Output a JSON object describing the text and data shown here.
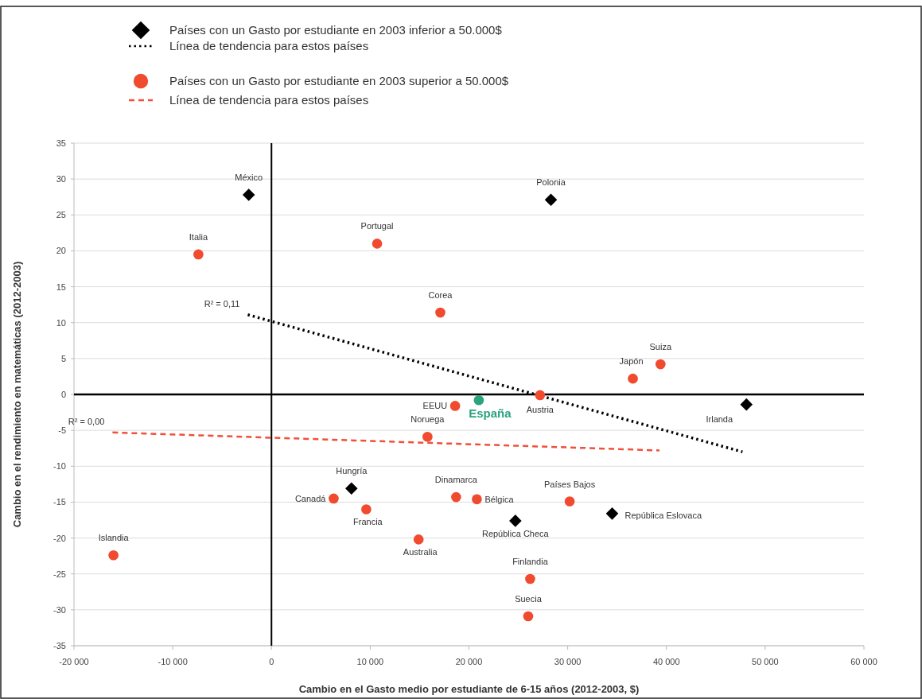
{
  "chart_data": {
    "type": "scatter",
    "xlabel": "Cambio en el Gasto medio por estudiante de 6-15 años (2012-2003, $)",
    "ylabel": "Cambio en el rendimiento en matemáticas (2012-2003)",
    "xlim": [
      -20000,
      60000
    ],
    "ylim": [
      -35,
      35
    ],
    "xticks": [
      {
        "value": -20000,
        "label": "-20 000"
      },
      {
        "value": -10000,
        "label": "-10 000"
      },
      0,
      {
        "value": 10000,
        "label": "10 000"
      },
      {
        "value": 20000,
        "label": "20 000"
      },
      {
        "value": 30000,
        "label": "30 000"
      },
      {
        "value": 40000,
        "label": "40 000"
      },
      {
        "value": 50000,
        "label": "50 000"
      },
      {
        "value": 60000,
        "label": "60 000"
      }
    ],
    "yticks": [
      -35,
      -30,
      -25,
      -20,
      -15,
      -10,
      -5,
      0,
      5,
      10,
      15,
      20,
      25,
      30,
      35
    ],
    "grid": "y",
    "legend": "top",
    "annotations": [
      {
        "text": "R² = 0,11",
        "x": -2400,
        "y": 11.1
      },
      {
        "text": "R² = 0,00",
        "x": -16100,
        "y": -5.3
      }
    ],
    "series": [
      {
        "name": "Países con un Gasto por estudiante en 2003 inferior a 50.000$",
        "type": "scatter",
        "marker": "diamond",
        "color": "#000000",
        "x": [
          -2300,
          28300,
          8100,
          24700,
          34500,
          48100
        ],
        "values": [
          27.8,
          27.1,
          -13.1,
          -17.6,
          -16.6,
          -1.4
        ],
        "value_labels": [
          "México",
          "Polonia",
          "Hungría",
          "República Checa",
          "República Eslovaca",
          "Irlanda"
        ]
      },
      {
        "name": "Línea de tendencia para estos países",
        "type": "line",
        "marker": "none",
        "line_style": "dotted",
        "color": "#000000",
        "x": [
          -2400,
          47700
        ],
        "values": [
          11.1,
          -8.0
        ]
      },
      {
        "name": "Países con un Gasto por estudiante en 2003 superior a 50.000$",
        "type": "scatter",
        "marker": "circle",
        "color": "#f04a2f",
        "x": [
          -7400,
          10700,
          17100,
          18600,
          21000,
          27200,
          36600,
          39400,
          15800,
          6300,
          9600,
          14900,
          -16000,
          18700,
          20800,
          30200,
          26200,
          26000
        ],
        "values": [
          19.5,
          21.0,
          11.4,
          -1.6,
          -0.8,
          -0.1,
          2.2,
          4.2,
          -5.9,
          -14.5,
          -16.0,
          -20.2,
          -22.4,
          -14.3,
          -14.6,
          -14.9,
          -25.7,
          -30.9
        ],
        "colors": [
          "#f04a2f",
          "#f04a2f",
          "#f04a2f",
          "#f04a2f",
          "#2aa380",
          "#f04a2f",
          "#f04a2f",
          "#f04a2f",
          "#f04a2f",
          "#f04a2f",
          "#f04a2f",
          "#f04a2f",
          "#f04a2f",
          "#f04a2f",
          "#f04a2f",
          "#f04a2f",
          "#f04a2f",
          "#f04a2f"
        ],
        "value_labels": [
          "Italia",
          "Portugal",
          "Corea",
          "EEUU",
          "España",
          "Austria",
          "Japón",
          "Suiza",
          "Noruega",
          "Canadá",
          "Francia",
          "Australia",
          "Islandia",
          "Dinamarca",
          "Bélgica",
          "Países Bajos",
          "Finlandia",
          "Suecia"
        ]
      },
      {
        "name": "Línea de tendencia para estos países",
        "type": "line",
        "marker": "none",
        "line_style": "dashed",
        "color": "#f0503a",
        "x": [
          -16100,
          39300
        ],
        "values": [
          -5.3,
          -7.8
        ]
      }
    ]
  }
}
